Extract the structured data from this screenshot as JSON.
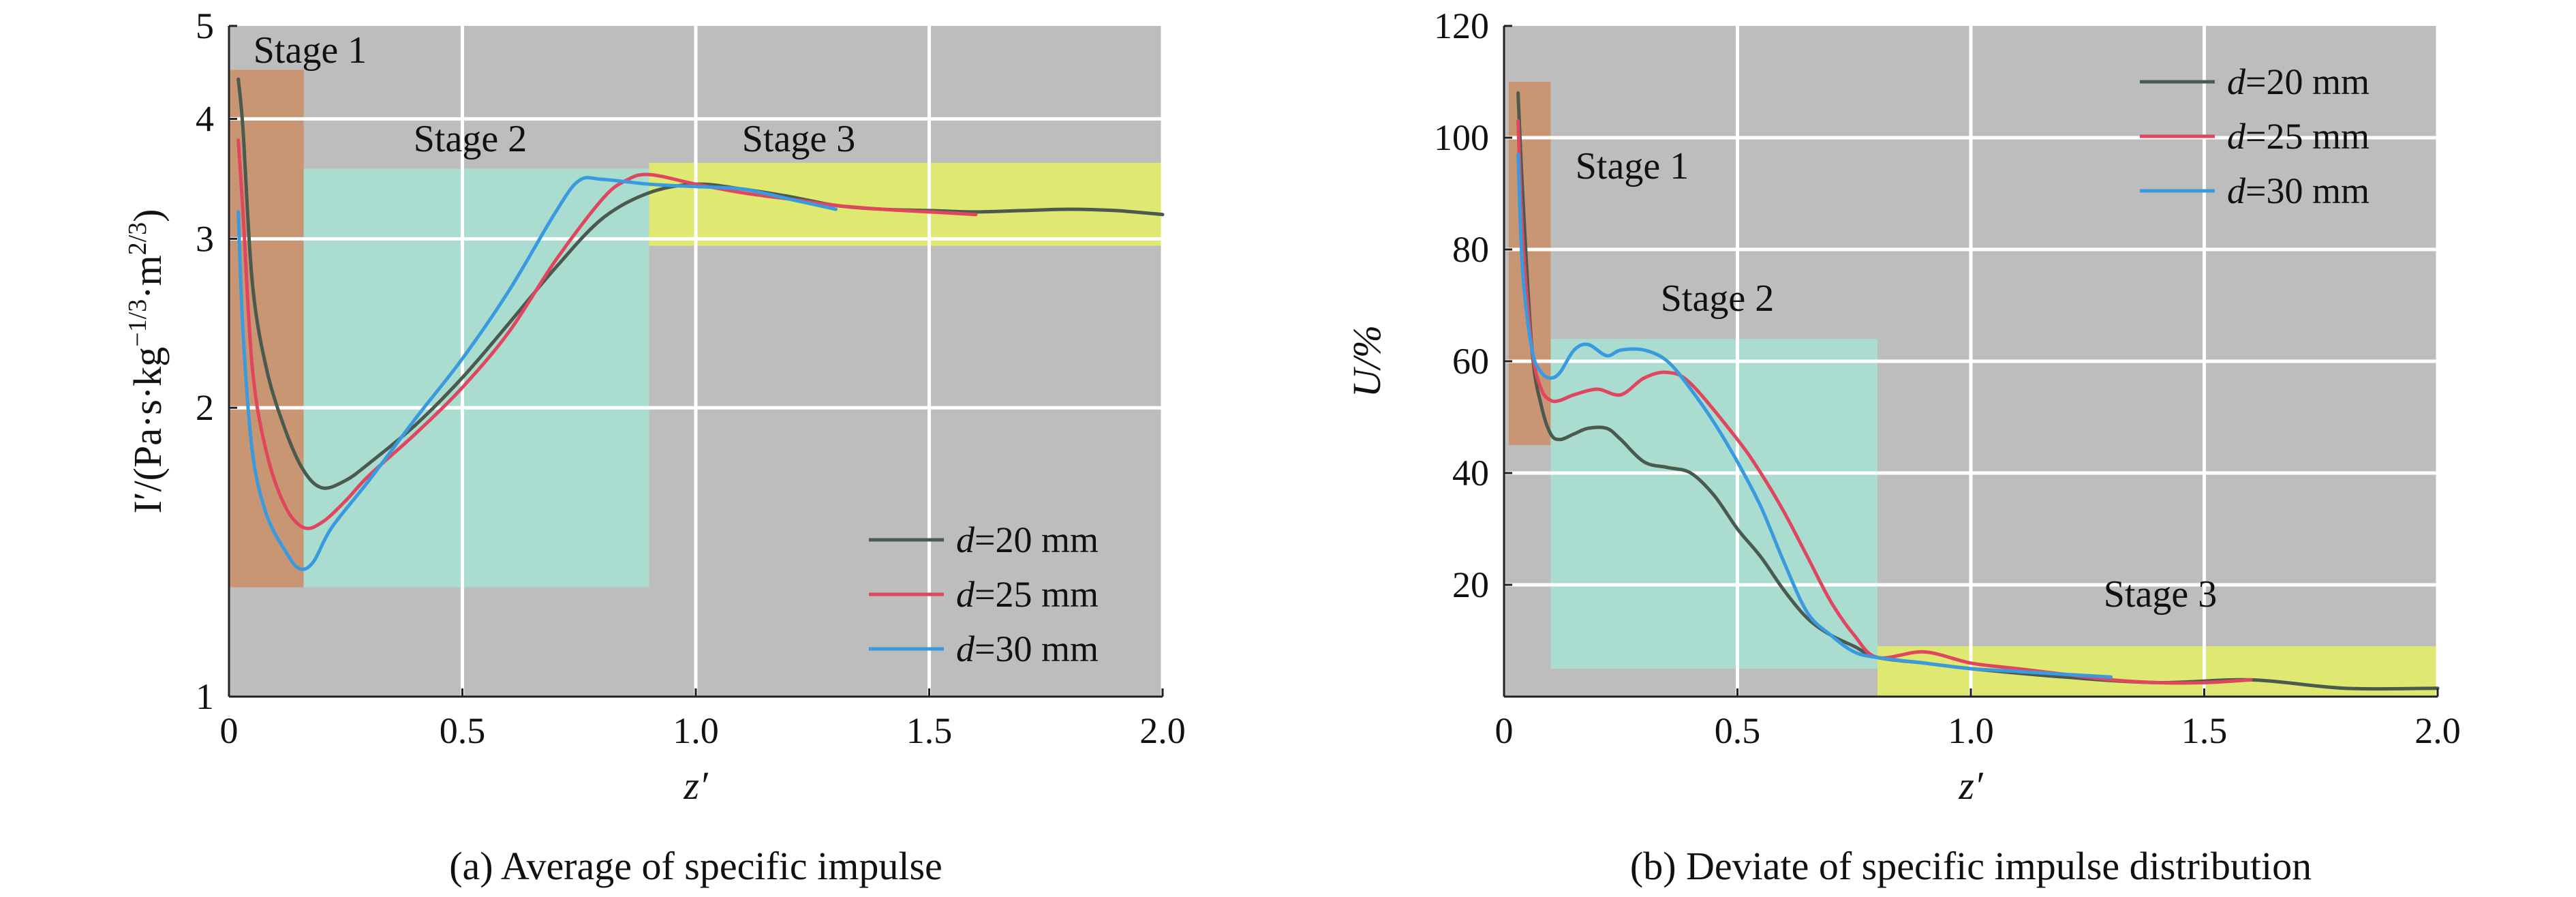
{
  "chart_data": [
    {
      "type": "line",
      "caption": "(a) Average of specific impulse",
      "xlabel": "z′",
      "ylabel": "I′/(Pa·s·kg",
      "ylabel_exp1": "−1/3",
      "ylabel_mid": "·m",
      "ylabel_exp2": "2/3",
      "ylabel_end": ")",
      "yscale": "log",
      "xlim": [
        0,
        2.0
      ],
      "ylim": [
        1,
        5
      ],
      "xticks": [
        0,
        0.5,
        1.0,
        1.5,
        2.0
      ],
      "xtick_labels": [
        "0",
        "0.5",
        "1.0",
        "1.5",
        "2.0"
      ],
      "yticks": [
        1,
        2,
        3,
        4,
        5
      ],
      "ytick_labels": [
        "1",
        "2",
        "3",
        "4",
        "5"
      ],
      "grid": true,
      "legend_position": "lower-right",
      "stages": [
        {
          "label": "Stage 1",
          "x": [
            0,
            0.16
          ],
          "y": [
            1.3,
            4.5
          ],
          "color": "#c9926c"
        },
        {
          "label": "Stage 2",
          "x": [
            0.16,
            0.9
          ],
          "y": [
            1.3,
            3.55
          ],
          "color": "#a8e0d0"
        },
        {
          "label": "Stage 3",
          "x": [
            0.9,
            2.0
          ],
          "y": [
            2.95,
            3.6
          ],
          "color": "#e2ec6a"
        }
      ],
      "series": [
        {
          "name": "d=20 mm",
          "color": "#4b5a4e",
          "x": [
            0.02,
            0.03,
            0.05,
            0.08,
            0.12,
            0.16,
            0.2,
            0.25,
            0.3,
            0.4,
            0.5,
            0.6,
            0.7,
            0.8,
            0.9,
            1.0,
            1.1,
            1.2,
            1.3,
            1.4,
            1.5,
            1.6,
            1.7,
            1.8,
            1.9,
            2.0
          ],
          "y": [
            4.4,
            3.9,
            2.7,
            2.2,
            1.9,
            1.72,
            1.65,
            1.68,
            1.75,
            1.92,
            2.15,
            2.45,
            2.8,
            3.15,
            3.35,
            3.42,
            3.38,
            3.32,
            3.25,
            3.22,
            3.21,
            3.2,
            3.21,
            3.22,
            3.21,
            3.18
          ]
        },
        {
          "name": "d=25 mm",
          "color": "#e0475f",
          "x": [
            0.02,
            0.03,
            0.05,
            0.08,
            0.12,
            0.16,
            0.2,
            0.25,
            0.3,
            0.4,
            0.5,
            0.6,
            0.7,
            0.8,
            0.85,
            0.9,
            1.0,
            1.1,
            1.2,
            1.3,
            1.4,
            1.5,
            1.6
          ],
          "y": [
            3.8,
            3.2,
            2.2,
            1.8,
            1.58,
            1.5,
            1.52,
            1.6,
            1.7,
            1.88,
            2.1,
            2.4,
            2.85,
            3.3,
            3.45,
            3.5,
            3.42,
            3.35,
            3.3,
            3.25,
            3.22,
            3.2,
            3.18
          ]
        },
        {
          "name": "d=30 mm",
          "color": "#3a9ae0",
          "x": [
            0.02,
            0.03,
            0.05,
            0.08,
            0.12,
            0.15,
            0.18,
            0.22,
            0.3,
            0.4,
            0.5,
            0.6,
            0.7,
            0.75,
            0.8,
            0.9,
            1.0,
            1.1,
            1.2,
            1.3
          ],
          "y": [
            3.2,
            2.4,
            1.8,
            1.55,
            1.42,
            1.36,
            1.38,
            1.5,
            1.68,
            1.95,
            2.25,
            2.65,
            3.2,
            3.45,
            3.46,
            3.42,
            3.4,
            3.38,
            3.3,
            3.22
          ]
        }
      ]
    },
    {
      "type": "line",
      "caption": "(b) Deviate of specific impulse distribution",
      "xlabel": "z′",
      "ylabel": "U/%",
      "yscale": "linear",
      "xlim": [
        0,
        2.0
      ],
      "ylim": [
        0,
        120
      ],
      "xticks": [
        0,
        0.5,
        1.0,
        1.5,
        2.0
      ],
      "xtick_labels": [
        "0",
        "0.5",
        "1.0",
        "1.5",
        "2.0"
      ],
      "yticks": [
        20,
        40,
        60,
        80,
        100,
        120
      ],
      "ytick_labels": [
        "20",
        "40",
        "60",
        "80",
        "100",
        "120"
      ],
      "grid": true,
      "legend_position": "top-right",
      "stages": [
        {
          "label": "Stage 1",
          "x": [
            0.01,
            0.1
          ],
          "y": [
            45,
            110
          ],
          "color": "#c9926c"
        },
        {
          "label": "Stage 2",
          "x": [
            0.1,
            0.8
          ],
          "y": [
            5,
            64
          ],
          "color": "#a8e0d0"
        },
        {
          "label": "Stage 3",
          "x": [
            0.8,
            2.0
          ],
          "y": [
            0,
            9
          ],
          "color": "#e2ec6a"
        }
      ],
      "series": [
        {
          "name": "d=20 mm",
          "color": "#4b5a4e",
          "x": [
            0.03,
            0.04,
            0.06,
            0.08,
            0.1,
            0.12,
            0.15,
            0.18,
            0.22,
            0.25,
            0.3,
            0.35,
            0.4,
            0.45,
            0.5,
            0.55,
            0.6,
            0.65,
            0.7,
            0.75,
            0.8,
            0.9,
            1.0,
            1.2,
            1.4,
            1.6,
            1.8,
            2.0
          ],
          "y": [
            108,
            90,
            62,
            52,
            47,
            46,
            47,
            48,
            48,
            46,
            42,
            41,
            40,
            36,
            30,
            25,
            19,
            14,
            11,
            9,
            7,
            6,
            5,
            3.5,
            2.5,
            3,
            1.5,
            1.5
          ]
        },
        {
          "name": "d=25 mm",
          "color": "#e0475f",
          "x": [
            0.03,
            0.04,
            0.06,
            0.08,
            0.1,
            0.12,
            0.15,
            0.2,
            0.25,
            0.3,
            0.35,
            0.4,
            0.5,
            0.55,
            0.6,
            0.65,
            0.7,
            0.75,
            0.8,
            0.9,
            1.0,
            1.1,
            1.2,
            1.3,
            1.4,
            1.5,
            1.6
          ],
          "y": [
            103,
            82,
            62,
            55,
            53,
            53,
            54,
            55,
            54,
            57,
            58,
            56,
            46,
            40,
            33,
            25,
            17,
            11,
            7,
            8,
            6,
            5,
            4,
            3,
            2.5,
            2.5,
            3
          ]
        },
        {
          "name": "d=30 mm",
          "color": "#3a9ae0",
          "x": [
            0.03,
            0.04,
            0.06,
            0.08,
            0.1,
            0.12,
            0.15,
            0.18,
            0.22,
            0.25,
            0.3,
            0.35,
            0.4,
            0.45,
            0.5,
            0.55,
            0.6,
            0.65,
            0.7,
            0.75,
            0.8,
            0.9,
            1.0,
            1.1,
            1.2,
            1.3
          ],
          "y": [
            97,
            76,
            62,
            58,
            57,
            58,
            62,
            63,
            61,
            62,
            62,
            60,
            55,
            49,
            42,
            34,
            24,
            15,
            11,
            8,
            7,
            6,
            5,
            4.5,
            4,
            3.5
          ]
        }
      ]
    }
  ]
}
